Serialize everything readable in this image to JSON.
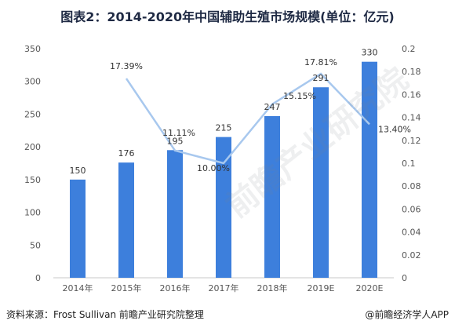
{
  "title": "图表2：2014-2020年中国辅助生殖市场规模(单位：亿元)",
  "source": "资料来源：Frost Sullivan 前瞻产业研究院整理",
  "brand": "@前瞻经济学人APP",
  "watermark": "前瞻产业研究院",
  "colors": {
    "bar": "#3d7fdc",
    "line": "#a8c8ee",
    "axis": "#c8c8c8",
    "text": "#555555"
  },
  "chart_data": {
    "type": "bar",
    "categories": [
      "2014年",
      "2015年",
      "2016年",
      "2017年",
      "2018年",
      "2019E",
      "2020E"
    ],
    "series": [
      {
        "type": "bar",
        "axis": "left",
        "values": [
          150,
          176,
          195,
          215,
          247,
          291,
          330
        ],
        "labels": [
          "150",
          "176",
          "195",
          "215",
          "247",
          "291",
          "330"
        ]
      },
      {
        "type": "line",
        "axis": "right",
        "values": [
          null,
          0.1739,
          0.1111,
          0.1,
          0.1515,
          0.1781,
          0.134
        ],
        "labels": [
          null,
          "17.39%",
          "11.11%",
          "10.00%",
          "15.15%",
          "17.81%",
          "13.40%"
        ]
      }
    ],
    "ylim": [
      0,
      350
    ],
    "yticks": [
      "0",
      "50",
      "100",
      "150",
      "200",
      "250",
      "300",
      "350"
    ],
    "y2lim": [
      0,
      0.2
    ],
    "y2ticks": [
      "0",
      "0.02",
      "0.04",
      "0.06",
      "0.08",
      "0.1",
      "0.12",
      "0.14",
      "0.16",
      "0.18",
      "0.2"
    ],
    "grid": false
  }
}
